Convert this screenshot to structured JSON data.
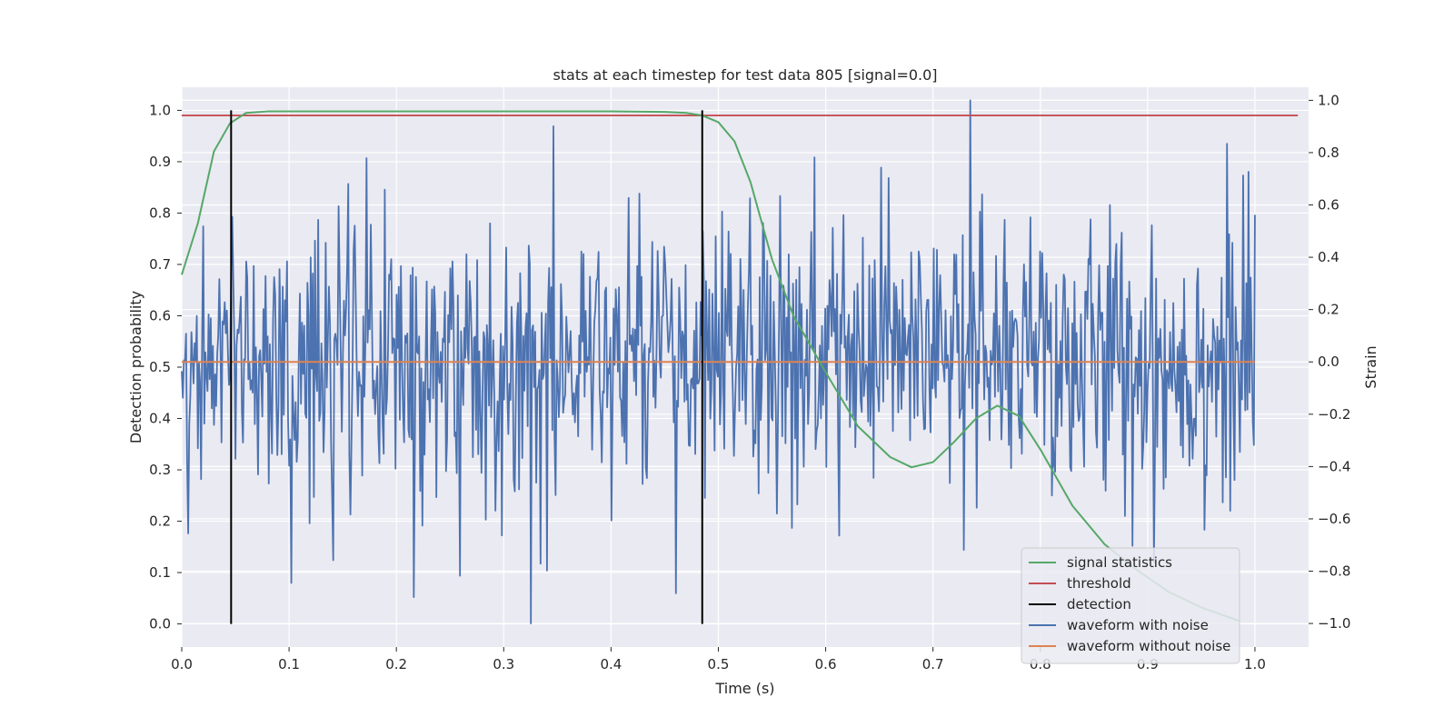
{
  "chart_data": {
    "type": "line",
    "title": "stats at each timestep for test data 805 [signal=0.0]",
    "xlabel": "Time (s)",
    "ylabel": "Detection probability",
    "y2label": "Strain",
    "xlim": [
      0.0,
      1.05
    ],
    "ylim": [
      -0.045,
      1.045
    ],
    "y2lim": [
      -1.09,
      1.05
    ],
    "xticks": [
      0.0,
      0.1,
      0.2,
      0.3,
      0.4,
      0.5,
      0.6,
      0.7,
      0.8,
      0.9,
      1.0
    ],
    "yticks": [
      0.0,
      0.1,
      0.2,
      0.3,
      0.4,
      0.5,
      0.6,
      0.7,
      0.8,
      0.9,
      1.0
    ],
    "y2ticks": [
      -1.0,
      -0.8,
      -0.6,
      -0.4,
      -0.2,
      0.0,
      0.2,
      0.4,
      0.6,
      0.8,
      1.0
    ],
    "grid": true,
    "legend_position": "bottom-right",
    "colors": {
      "background": "#eaeaf2",
      "grid": "#ffffff",
      "signal": "#55a868",
      "threshold": "#c44e52",
      "detection": "#000000",
      "noisy": "#4c72b0",
      "clean": "#dd8452"
    },
    "legend": [
      {
        "label": "signal statistics",
        "color": "#55a868"
      },
      {
        "label": "threshold",
        "color": "#c44e52"
      },
      {
        "label": "detection",
        "color": "#000000"
      },
      {
        "label": "waveform with noise",
        "color": "#4c72b0"
      },
      {
        "label": "waveform without noise",
        "color": "#dd8452"
      }
    ],
    "series": [
      {
        "name": "signal statistics",
        "axis": "left",
        "x": [
          0.0,
          0.015,
          0.03,
          0.045,
          0.06,
          0.08,
          0.1,
          0.2,
          0.3,
          0.4,
          0.45,
          0.47,
          0.485,
          0.5,
          0.515,
          0.53,
          0.55,
          0.57,
          0.6,
          0.63,
          0.66,
          0.68,
          0.7,
          0.72,
          0.74,
          0.76,
          0.78,
          0.8,
          0.83,
          0.86,
          0.89,
          0.92,
          0.95,
          0.985
        ],
        "y": [
          0.68,
          0.78,
          0.92,
          0.975,
          0.995,
          0.998,
          0.998,
          0.998,
          0.998,
          0.998,
          0.997,
          0.995,
          0.99,
          0.977,
          0.94,
          0.86,
          0.71,
          0.6,
          0.49,
          0.385,
          0.325,
          0.305,
          0.315,
          0.355,
          0.4,
          0.425,
          0.405,
          0.34,
          0.23,
          0.155,
          0.105,
          0.062,
          0.032,
          0.006
        ]
      },
      {
        "name": "threshold",
        "axis": "left",
        "x": [
          0.0,
          1.04
        ],
        "y": [
          0.99,
          0.99
        ]
      },
      {
        "name": "waveform with noise",
        "axis": "right",
        "noise_samples": 1000,
        "x_range": [
          0.0,
          1.0
        ],
        "std": 0.28,
        "min": -1.0,
        "max": 1.0,
        "max_at": 0.735,
        "min_at": 0.325
      },
      {
        "name": "waveform without noise",
        "axis": "right",
        "x": [
          0.0,
          1.0
        ],
        "y": [
          0.0,
          0.0
        ]
      }
    ],
    "detections": [
      0.046,
      0.485
    ]
  }
}
